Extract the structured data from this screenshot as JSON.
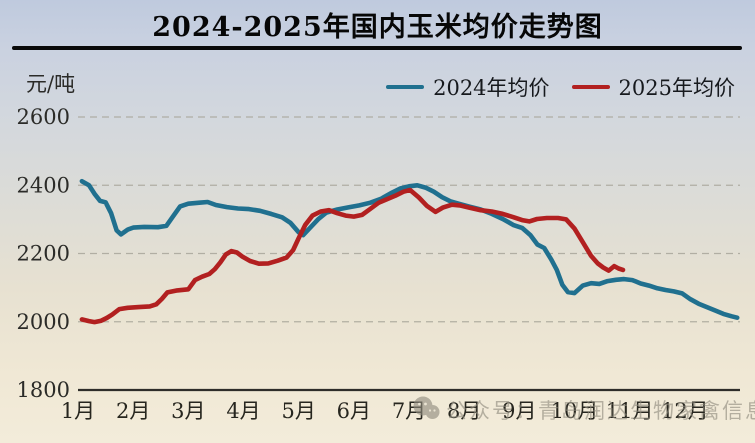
{
  "title": "2024-2025年国内玉米均价走势图",
  "watermark": {
    "icon": "wechat-icon",
    "text": "公众号：青岛润达生物家禽信息"
  },
  "chart_data": {
    "type": "line",
    "title": "2024-2025年国内玉米均价走势图",
    "xlabel": "",
    "ylabel": "元/吨",
    "ylim": [
      1800,
      2600
    ],
    "y_ticks": [
      1800,
      2000,
      2200,
      2400,
      2600
    ],
    "x_labels": [
      "1月",
      "2月",
      "3月",
      "4月",
      "5月",
      "6月",
      "7月",
      "8月",
      "9月",
      "10月",
      "11月",
      "12月"
    ],
    "xlim": [
      1,
      13
    ],
    "grid": "horizontal-dashed",
    "legend_position": "top-right",
    "axis_color": "#2e2d2a",
    "grid_color": "#a9a69b",
    "series": [
      {
        "name": "2024年均价",
        "color": "#20708f",
        "points": [
          [
            1.07,
            2412
          ],
          [
            1.2,
            2400
          ],
          [
            1.3,
            2375
          ],
          [
            1.4,
            2354
          ],
          [
            1.5,
            2350
          ],
          [
            1.6,
            2318
          ],
          [
            1.7,
            2268
          ],
          [
            1.78,
            2256
          ],
          [
            1.9,
            2270
          ],
          [
            2.0,
            2276
          ],
          [
            2.2,
            2278
          ],
          [
            2.45,
            2277
          ],
          [
            2.6,
            2281
          ],
          [
            2.72,
            2308
          ],
          [
            2.85,
            2338
          ],
          [
            3.0,
            2346
          ],
          [
            3.2,
            2349
          ],
          [
            3.35,
            2351
          ],
          [
            3.5,
            2342
          ],
          [
            3.7,
            2336
          ],
          [
            3.9,
            2332
          ],
          [
            4.1,
            2330
          ],
          [
            4.3,
            2325
          ],
          [
            4.5,
            2316
          ],
          [
            4.7,
            2306
          ],
          [
            4.85,
            2290
          ],
          [
            5.0,
            2262
          ],
          [
            5.08,
            2254
          ],
          [
            5.2,
            2274
          ],
          [
            5.35,
            2300
          ],
          [
            5.5,
            2320
          ],
          [
            5.7,
            2329
          ],
          [
            5.9,
            2335
          ],
          [
            6.1,
            2341
          ],
          [
            6.3,
            2349
          ],
          [
            6.5,
            2361
          ],
          [
            6.7,
            2379
          ],
          [
            6.85,
            2391
          ],
          [
            7.0,
            2397
          ],
          [
            7.15,
            2400
          ],
          [
            7.3,
            2393
          ],
          [
            7.45,
            2381
          ],
          [
            7.6,
            2365
          ],
          [
            7.75,
            2353
          ],
          [
            7.9,
            2346
          ],
          [
            8.1,
            2337
          ],
          [
            8.3,
            2329
          ],
          [
            8.5,
            2316
          ],
          [
            8.7,
            2301
          ],
          [
            8.9,
            2283
          ],
          [
            9.05,
            2275
          ],
          [
            9.2,
            2254
          ],
          [
            9.33,
            2226
          ],
          [
            9.45,
            2216
          ],
          [
            9.58,
            2182
          ],
          [
            9.68,
            2152
          ],
          [
            9.78,
            2108
          ],
          [
            9.88,
            2087
          ],
          [
            10.0,
            2084
          ],
          [
            10.15,
            2106
          ],
          [
            10.3,
            2113
          ],
          [
            10.45,
            2111
          ],
          [
            10.6,
            2119
          ],
          [
            10.75,
            2123
          ],
          [
            10.9,
            2125
          ],
          [
            11.05,
            2122
          ],
          [
            11.2,
            2112
          ],
          [
            11.35,
            2106
          ],
          [
            11.5,
            2098
          ],
          [
            11.65,
            2093
          ],
          [
            11.8,
            2089
          ],
          [
            11.95,
            2083
          ],
          [
            12.1,
            2066
          ],
          [
            12.25,
            2053
          ],
          [
            12.4,
            2043
          ],
          [
            12.55,
            2033
          ],
          [
            12.7,
            2023
          ],
          [
            12.85,
            2016
          ],
          [
            12.95,
            2012
          ]
        ]
      },
      {
        "name": "2025年均价",
        "color": "#b22020",
        "points": [
          [
            1.07,
            2007
          ],
          [
            1.2,
            2002
          ],
          [
            1.3,
            1999
          ],
          [
            1.42,
            2003
          ],
          [
            1.52,
            2011
          ],
          [
            1.62,
            2021
          ],
          [
            1.75,
            2037
          ],
          [
            1.9,
            2041
          ],
          [
            2.1,
            2043
          ],
          [
            2.3,
            2045
          ],
          [
            2.42,
            2051
          ],
          [
            2.52,
            2067
          ],
          [
            2.62,
            2086
          ],
          [
            2.8,
            2092
          ],
          [
            3.0,
            2095
          ],
          [
            3.12,
            2122
          ],
          [
            3.25,
            2132
          ],
          [
            3.38,
            2140
          ],
          [
            3.48,
            2154
          ],
          [
            3.58,
            2174
          ],
          [
            3.68,
            2197
          ],
          [
            3.78,
            2207
          ],
          [
            3.88,
            2203
          ],
          [
            3.98,
            2191
          ],
          [
            4.12,
            2178
          ],
          [
            4.28,
            2170
          ],
          [
            4.45,
            2171
          ],
          [
            4.62,
            2179
          ],
          [
            4.78,
            2188
          ],
          [
            4.9,
            2210
          ],
          [
            5.0,
            2245
          ],
          [
            5.12,
            2284
          ],
          [
            5.25,
            2311
          ],
          [
            5.4,
            2323
          ],
          [
            5.55,
            2327
          ],
          [
            5.7,
            2318
          ],
          [
            5.85,
            2311
          ],
          [
            6.0,
            2308
          ],
          [
            6.15,
            2313
          ],
          [
            6.3,
            2331
          ],
          [
            6.45,
            2349
          ],
          [
            6.6,
            2359
          ],
          [
            6.75,
            2369
          ],
          [
            6.9,
            2381
          ],
          [
            7.02,
            2386
          ],
          [
            7.18,
            2364
          ],
          [
            7.32,
            2340
          ],
          [
            7.48,
            2322
          ],
          [
            7.62,
            2335
          ],
          [
            7.78,
            2343
          ],
          [
            7.92,
            2341
          ],
          [
            8.1,
            2334
          ],
          [
            8.3,
            2327
          ],
          [
            8.5,
            2323
          ],
          [
            8.7,
            2316
          ],
          [
            8.9,
            2306
          ],
          [
            9.05,
            2298
          ],
          [
            9.18,
            2294
          ],
          [
            9.32,
            2301
          ],
          [
            9.5,
            2304
          ],
          [
            9.7,
            2304
          ],
          [
            9.85,
            2300
          ],
          [
            10.0,
            2273
          ],
          [
            10.15,
            2233
          ],
          [
            10.3,
            2193
          ],
          [
            10.42,
            2171
          ],
          [
            10.52,
            2159
          ],
          [
            10.62,
            2150
          ],
          [
            10.72,
            2163
          ],
          [
            10.8,
            2156
          ],
          [
            10.88,
            2152
          ]
        ]
      }
    ]
  }
}
